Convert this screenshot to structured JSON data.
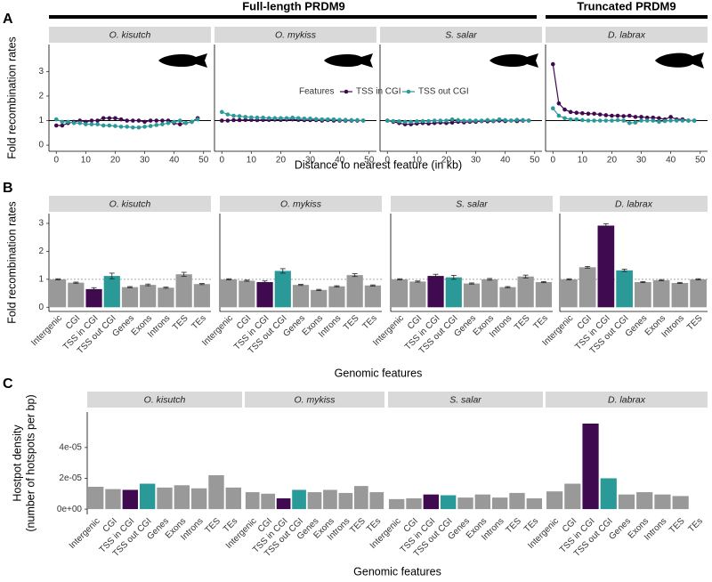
{
  "headers": [
    "Full-length PRDM9",
    "Truncated PRDM9"
  ],
  "chart_data": [
    {
      "type": "line",
      "panel": "A",
      "x_label": "Distance to nearest feature (in kb)",
      "y_label": "Fold recombination rates",
      "xlim": [
        -2.5,
        52.5
      ],
      "xticks": [
        0,
        10,
        20,
        30,
        40,
        50
      ],
      "ylim": [
        -0.25,
        4.1
      ],
      "yticks": [
        0,
        1,
        2,
        3
      ],
      "reference_line": 1,
      "reference_style": "solid",
      "legend_title": "Features",
      "series": [
        {
          "name": "TSS in CGI",
          "color": "#3f0a50"
        },
        {
          "name": "TSS out CGI",
          "color": "#2a9a98"
        }
      ],
      "x": [
        0,
        2,
        4,
        6,
        8,
        10,
        12,
        14,
        16,
        18,
        20,
        22,
        24,
        26,
        28,
        30,
        32,
        34,
        36,
        38,
        40,
        42,
        44,
        46,
        48
      ],
      "facets": [
        {
          "title": "O. kisutch",
          "series": [
            {
              "values": [
                0.8,
                0.8,
                0.9,
                0.95,
                1.0,
                0.95,
                1.0,
                1.0,
                1.1,
                1.1,
                1.1,
                1.05,
                1.0,
                1.0,
                1.0,
                0.95,
                1.0,
                1.0,
                1.0,
                1.0,
                0.9,
                0.85,
                0.9,
                0.95,
                1.1
              ]
            },
            {
              "values": [
                1.05,
                0.95,
                0.95,
                0.9,
                0.9,
                0.85,
                0.85,
                0.85,
                0.8,
                0.8,
                0.78,
                0.75,
                0.75,
                0.72,
                0.72,
                0.75,
                0.78,
                0.82,
                0.85,
                0.9,
                0.95,
                1.0,
                0.9,
                0.95,
                1.05
              ]
            }
          ]
        },
        {
          "title": "O. mykiss",
          "series": [
            {
              "values": [
                1.0,
                1.0,
                1.02,
                1.02,
                1.03,
                1.03,
                1.02,
                1.03,
                1.03,
                1.04,
                1.03,
                1.04,
                1.05,
                1.03,
                1.02,
                1.02,
                1.02,
                1.0,
                1.02,
                1.0,
                1.0,
                1.0,
                1.0,
                1.0,
                1.0
              ]
            },
            {
              "values": [
                1.35,
                1.25,
                1.2,
                1.18,
                1.15,
                1.13,
                1.12,
                1.12,
                1.1,
                1.1,
                1.1,
                1.1,
                1.12,
                1.1,
                1.08,
                1.08,
                1.06,
                1.05,
                1.05,
                1.05,
                1.03,
                1.03,
                1.02,
                1.02,
                1.0
              ]
            }
          ]
        },
        {
          "title": "S. salar",
          "series": [
            {
              "values": [
                1.0,
                0.95,
                0.9,
                0.85,
                0.85,
                0.88,
                0.9,
                0.88,
                0.9,
                0.92,
                0.9,
                0.92,
                0.95,
                0.93,
                0.95,
                0.95,
                0.98,
                0.97,
                0.98,
                1.0,
                0.98,
                1.0,
                0.98,
                1.0,
                1.0
              ]
            },
            {
              "values": [
                1.0,
                0.98,
                0.97,
                0.95,
                0.95,
                0.97,
                0.98,
                0.98,
                1.0,
                1.0,
                1.0,
                1.05,
                1.02,
                1.0,
                1.0,
                1.0,
                1.0,
                1.02,
                1.0,
                1.05,
                1.02,
                1.0,
                1.03,
                1.02,
                1.0
              ]
            }
          ]
        },
        {
          "title": "D. labrax",
          "series": [
            {
              "values": [
                3.3,
                1.7,
                1.45,
                1.35,
                1.32,
                1.3,
                1.28,
                1.28,
                1.25,
                1.22,
                1.2,
                1.2,
                1.18,
                1.2,
                1.15,
                1.15,
                1.12,
                1.12,
                1.1,
                1.05,
                1.15,
                1.05,
                1.05,
                1.0,
                1.0
              ]
            },
            {
              "values": [
                1.5,
                1.2,
                1.1,
                1.05,
                1.05,
                1.02,
                1.0,
                1.0,
                1.0,
                1.0,
                1.0,
                1.02,
                1.0,
                0.9,
                0.92,
                1.0,
                1.0,
                1.0,
                0.95,
                0.98,
                1.0,
                1.0,
                1.0,
                1.0,
                1.0
              ]
            }
          ]
        }
      ]
    },
    {
      "type": "bar",
      "panel": "B",
      "x_label": "Genomic features",
      "y_label": "Fold recombination rates",
      "ylim": [
        -0.15,
        3.35
      ],
      "yticks": [
        0,
        1,
        2,
        3
      ],
      "reference_line": 1,
      "reference_style": "dotted",
      "bar_colors": [
        "#999999",
        "#999999",
        "#3f0a50",
        "#2a9a98",
        "#999999",
        "#999999",
        "#999999",
        "#999999",
        "#999999"
      ],
      "facets": [
        {
          "title": "O. kisutch",
          "categories": [
            "Intergenic",
            "CGI",
            "TSS in CGI",
            "TSS out CGI",
            "Genes",
            "Exons",
            "Introns",
            "TES",
            "TEs"
          ],
          "values": [
            1.0,
            0.88,
            0.65,
            1.12,
            0.72,
            0.8,
            0.7,
            1.18,
            0.83
          ],
          "errors": [
            0.02,
            0.02,
            0.05,
            0.1,
            0.02,
            0.03,
            0.02,
            0.07,
            0.02
          ]
        },
        {
          "title": "O. mykiss",
          "categories": [
            "Intergenic",
            "CGI",
            "TSS in CGI",
            "TSS out CGI",
            "Genes",
            "Exons",
            "Introns",
            "TES",
            "TEs"
          ],
          "values": [
            1.0,
            0.95,
            0.9,
            1.3,
            0.8,
            0.62,
            0.75,
            1.15,
            0.78
          ],
          "errors": [
            0.02,
            0.02,
            0.04,
            0.08,
            0.02,
            0.02,
            0.02,
            0.05,
            0.02
          ]
        },
        {
          "title": "S. salar",
          "categories": [
            "Intergenic",
            "CGI",
            "TSS in CGI",
            "TSS out CGI",
            "Genes",
            "Exons",
            "Introns",
            "TES",
            "TEs"
          ],
          "values": [
            1.0,
            0.92,
            1.12,
            1.07,
            0.85,
            1.0,
            0.72,
            1.1,
            0.9
          ],
          "errors": [
            0.02,
            0.02,
            0.06,
            0.07,
            0.02,
            0.03,
            0.02,
            0.05,
            0.02
          ]
        },
        {
          "title": "D. labrax",
          "categories": [
            "Intergenic",
            "CGI",
            "TSS in CGI",
            "TSS out CGI",
            "Genes",
            "Exons",
            "Introns",
            "TES"
          ],
          "values": [
            1.0,
            1.43,
            2.92,
            1.32,
            0.9,
            0.97,
            0.87,
            1.0
          ],
          "errors": [
            0.02,
            0.03,
            0.07,
            0.04,
            0.02,
            0.02,
            0.02,
            0.02
          ]
        }
      ]
    },
    {
      "type": "bar",
      "panel": "C",
      "x_label": "Genomic features",
      "y_label": [
        "Hostpot density",
        "(number of hotspots per bp)"
      ],
      "ylim": [
        -3.4e-06,
        6.3e-05
      ],
      "yticks": [
        {
          "value": 0,
          "label": "0e+00"
        },
        {
          "value": 2e-05,
          "label": "2e-05"
        },
        {
          "value": 4e-05,
          "label": "4e-05"
        }
      ],
      "bar_colors": [
        "#999999",
        "#999999",
        "#3f0a50",
        "#2a9a98",
        "#999999",
        "#999999",
        "#999999",
        "#999999",
        "#999999"
      ],
      "facets": [
        {
          "title": "O. kisutch",
          "categories": [
            "Intergenic",
            "CGI",
            "TSS in CGI",
            "TSS out CGI",
            "Genes",
            "Exons",
            "Introns",
            "TES",
            "TEs"
          ],
          "values": [
            1.45e-05,
            1.3e-05,
            1.25e-05,
            1.65e-05,
            1.4e-05,
            1.55e-05,
            1.35e-05,
            2.2e-05,
            1.4e-05
          ]
        },
        {
          "title": "O. mykiss",
          "categories": [
            "Intergenic",
            "CGI",
            "TSS in CGI",
            "TSS out CGI",
            "Genes",
            "Exons",
            "Introns",
            "TES",
            "TEs"
          ],
          "values": [
            1.1e-05,
            1e-05,
            7e-06,
            1.25e-05,
            1.1e-05,
            1.25e-05,
            1.05e-05,
            1.5e-05,
            1.1e-05
          ]
        },
        {
          "title": "S. salar",
          "categories": [
            "Intergenic",
            "CGI",
            "TSS in CGI",
            "TSS out CGI",
            "Genes",
            "Exons",
            "Introns",
            "TES",
            "TEs"
          ],
          "values": [
            6.5e-06,
            7e-06,
            9.5e-06,
            9e-06,
            7.5e-06,
            9.5e-06,
            7.5e-06,
            1.05e-05,
            7e-06
          ]
        },
        {
          "title": "D. labrax",
          "categories": [
            "Intergenic",
            "CGI",
            "TSS in CGI",
            "TSS out CGI",
            "Genes",
            "Exons",
            "Introns",
            "TES",
            "TEs"
          ],
          "values": [
            1.15e-05,
            1.65e-05,
            5.55e-05,
            2e-05,
            9.5e-06,
            1.1e-05,
            9.5e-06,
            8.5e-06,
            null
          ]
        }
      ]
    }
  ]
}
